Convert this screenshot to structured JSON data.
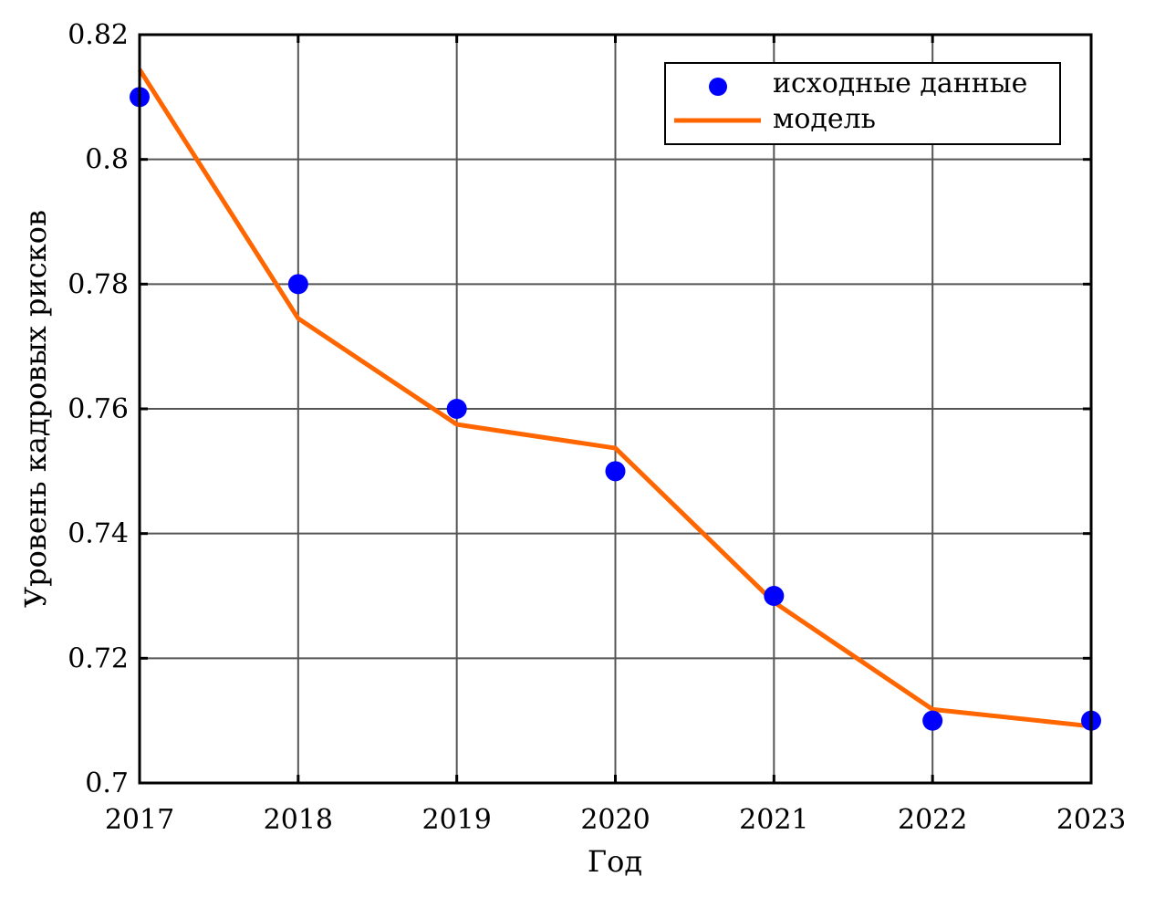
{
  "chart_data": {
    "type": "line",
    "title": "",
    "xlabel": "Год",
    "ylabel": "Уровень кадровых рисков",
    "xlim": [
      2017,
      2023
    ],
    "ylim": [
      0.7,
      0.82
    ],
    "x_ticks": [
      "2017",
      "2018",
      "2019",
      "2020",
      "2021",
      "2022",
      "2023"
    ],
    "y_ticks": [
      "0.7",
      "0.72",
      "0.74",
      "0.76",
      "0.78",
      "0.8",
      "0.82"
    ],
    "grid": true,
    "legend_position": "top-right",
    "x": [
      2017,
      2018,
      2019,
      2020,
      2021,
      2022,
      2023
    ],
    "series": [
      {
        "name": "исходные данные",
        "kind": "scatter",
        "color": "#0000ff",
        "values": [
          0.81,
          0.78,
          0.76,
          0.75,
          0.73,
          0.71,
          0.71
        ]
      },
      {
        "name": "модель",
        "kind": "line",
        "color": "#ff6600",
        "values": [
          0.8144,
          0.7745,
          0.7575,
          0.7537,
          0.729,
          0.7118,
          0.7091
        ]
      }
    ]
  }
}
